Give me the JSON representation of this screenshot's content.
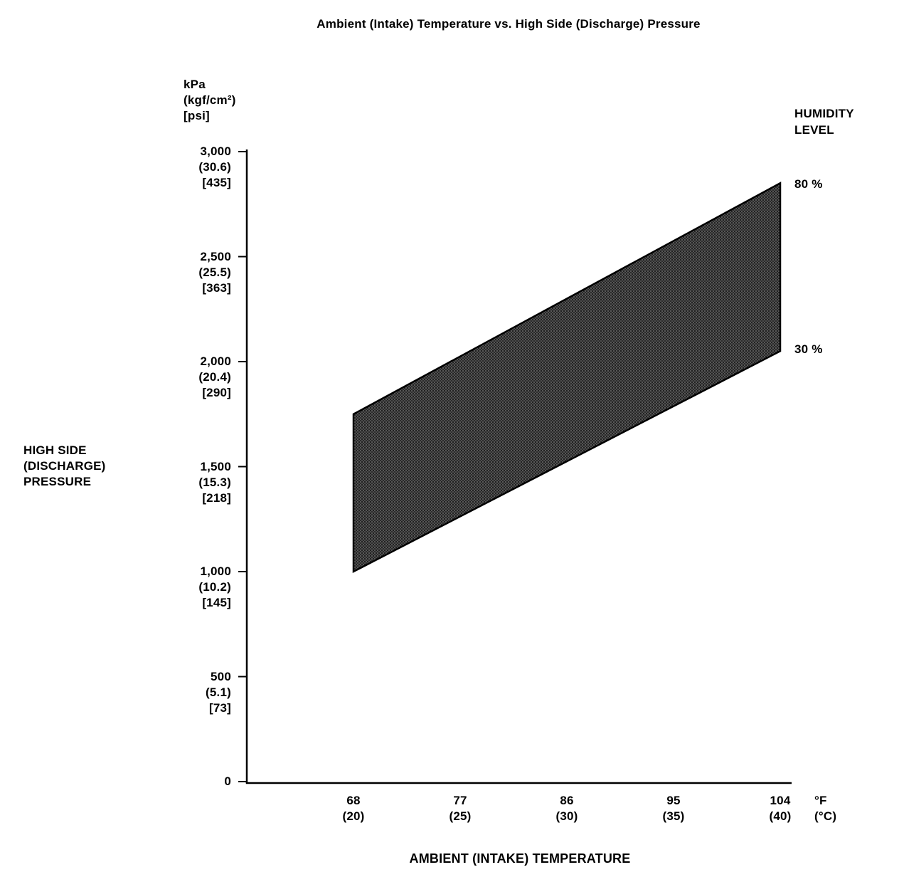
{
  "title": "Ambient (Intake) Temperature vs. High Side (Discharge) Pressure",
  "y_axis": {
    "unit_label": "kPa\n(kgf/cm²)\n[psi]",
    "axis_label": "HIGH SIDE\n(DISCHARGE)\nPRESSURE",
    "ticks": [
      {
        "value": 3000,
        "label": "3,000\n(30.6)\n[435]"
      },
      {
        "value": 2500,
        "label": "2,500\n(25.5)\n[363]"
      },
      {
        "value": 2000,
        "label": "2,000\n(20.4)\n[290]"
      },
      {
        "value": 1500,
        "label": "1,500\n(15.3)\n[218]"
      },
      {
        "value": 1000,
        "label": "1,000\n(10.2)\n[145]"
      },
      {
        "value": 500,
        "label": "500\n(5.1)\n[73]"
      },
      {
        "value": 0,
        "label": "0"
      }
    ]
  },
  "x_axis": {
    "axis_label": "AMBIENT (INTAKE) TEMPERATURE",
    "unit_label": "°F\n(°C)",
    "ticks": [
      {
        "value": 68,
        "label": "68\n(20)"
      },
      {
        "value": 77,
        "label": "77\n(25)"
      },
      {
        "value": 86,
        "label": "86\n(30)"
      },
      {
        "value": 95,
        "label": "95\n(35)"
      },
      {
        "value": 104,
        "label": "104\n(40)"
      }
    ]
  },
  "legend": {
    "title": "HUMIDITY\nLEVEL",
    "upper_label": "80 %",
    "lower_label": "30 %"
  },
  "chart_data": {
    "type": "area",
    "title": "Ambient (Intake) Temperature vs. High Side (Discharge) Pressure",
    "xlabel": "AMBIENT (INTAKE) TEMPERATURE",
    "ylabel": "HIGH SIDE (DISCHARGE) PRESSURE (kPa / kgf/cm² / psi)",
    "x": [
      68,
      104
    ],
    "x_celsius": [
      20,
      40
    ],
    "series": [
      {
        "name": "80 % humidity (upper boundary)",
        "values": [
          1750,
          2850
        ]
      },
      {
        "name": "30 % humidity (lower boundary)",
        "values": [
          1000,
          2050
        ]
      }
    ],
    "xlim": [
      68,
      104
    ],
    "ylim": [
      0,
      3000
    ],
    "grid": false,
    "legend_position": "right",
    "band_fill": "dark stipple between the two humidity boundary lines",
    "colors": {
      "band": "#3d3d3d",
      "axis": "#000000",
      "background": "#ffffff"
    }
  }
}
